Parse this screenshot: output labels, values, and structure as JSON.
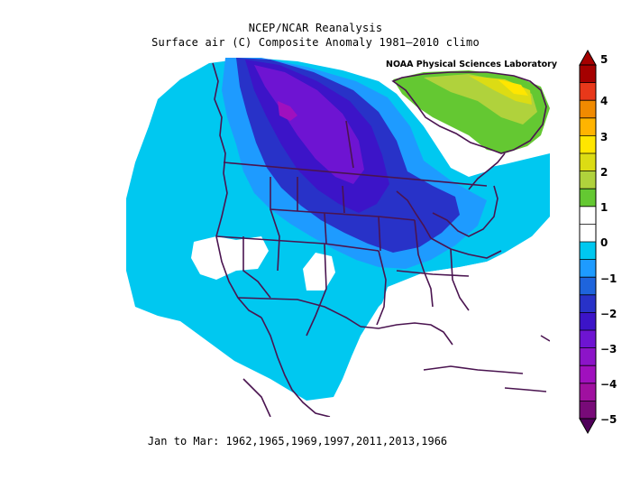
{
  "title_line1": "NCEP/NCAR Reanalysis",
  "title_line2": "Surface air (C) Composite Anomaly 1981–2010 climo",
  "credit": "NOAA Physical Sciences Laboratory",
  "footer": "Jan to Mar: 1962,1965,1969,1997,2011,2013,1966",
  "colorbar": {
    "ticks": [
      "5",
      "4",
      "3",
      "2",
      "1",
      "0",
      "−1",
      "−2",
      "−3",
      "−4",
      "−5"
    ],
    "colors": [
      "#a50000",
      "#e8381a",
      "#f08a00",
      "#ffb400",
      "#ffe600",
      "#dcdc14",
      "#b0d23c",
      "#64c832",
      "#ffffff",
      "#ffffff",
      "#00c8f0",
      "#1e9bff",
      "#1e64dc",
      "#2832c8",
      "#3c14c8",
      "#6e14d2",
      "#8c14c8",
      "#a010be",
      "#a010a0",
      "#780a78"
    ]
  }
}
